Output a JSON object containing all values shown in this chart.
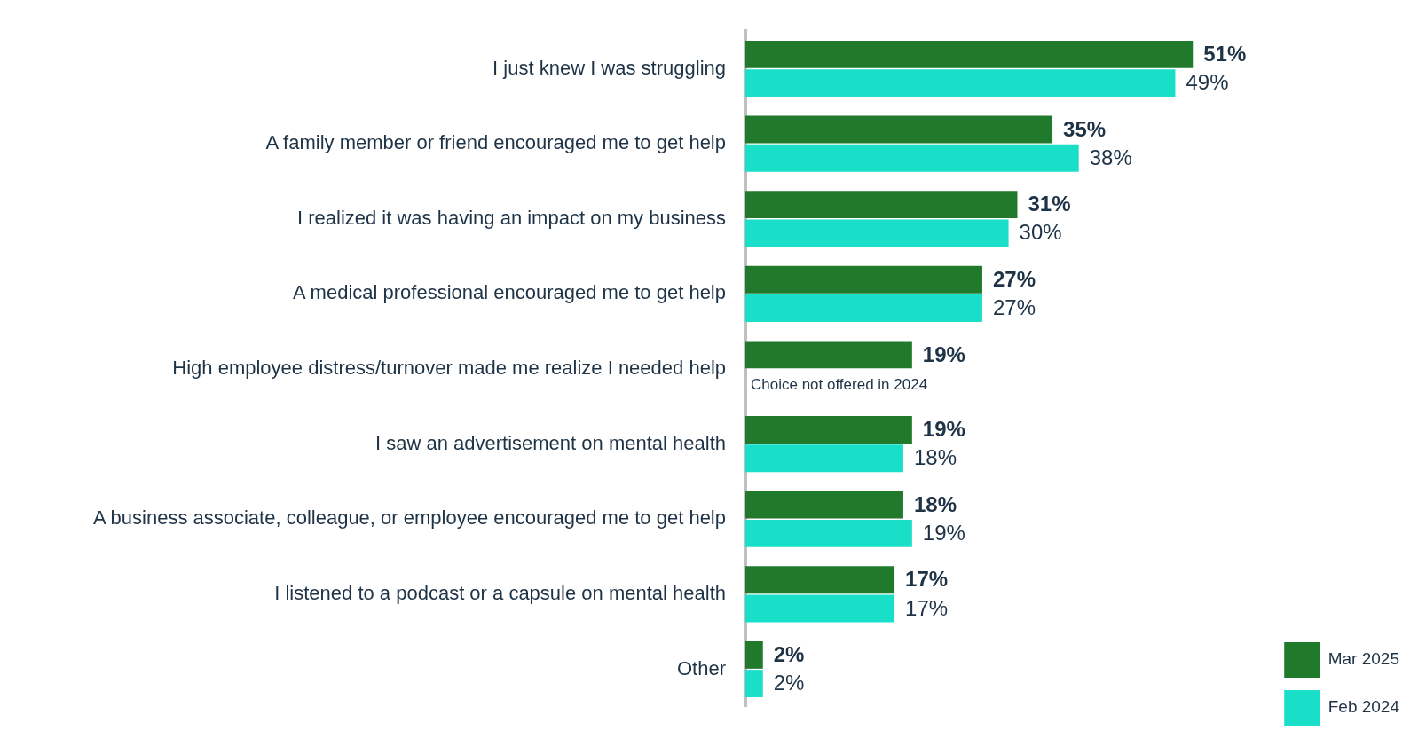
{
  "chart_data": {
    "type": "bar",
    "orientation": "horizontal",
    "categories": [
      "I just knew I was struggling",
      "A family member or friend encouraged me to get help",
      "I realized it was having an impact on my business",
      "A medical professional encouraged me to get help",
      "High employee distress/turnover made me realize I needed help",
      "I saw an advertisement on mental health",
      "A business associate, colleague, or employee encouraged me to get help",
      "I listened to a podcast or a capsule on mental health",
      "Other"
    ],
    "series": [
      {
        "name": "Mar 2025",
        "color": "#217a2b",
        "values": [
          51,
          35,
          31,
          27,
          19,
          19,
          18,
          17,
          2
        ],
        "value_labels": [
          "51%",
          "35%",
          "31%",
          "27%",
          "19%",
          "19%",
          "18%",
          "17%",
          "2%"
        ]
      },
      {
        "name": "Feb 2024",
        "color": "#19dfc9",
        "values": [
          49,
          38,
          30,
          27,
          null,
          18,
          19,
          17,
          2
        ],
        "value_labels": [
          "49%",
          "38%",
          "30%",
          "27%",
          null,
          "18%",
          "19%",
          "17%",
          "2%"
        ]
      }
    ],
    "annotations": [
      {
        "text": "Choice not offered in 2024",
        "x": 0,
        "y": "High employee distress/turnover made me realize I needed help"
      }
    ],
    "legend": "bottom right",
    "grid": false
  }
}
